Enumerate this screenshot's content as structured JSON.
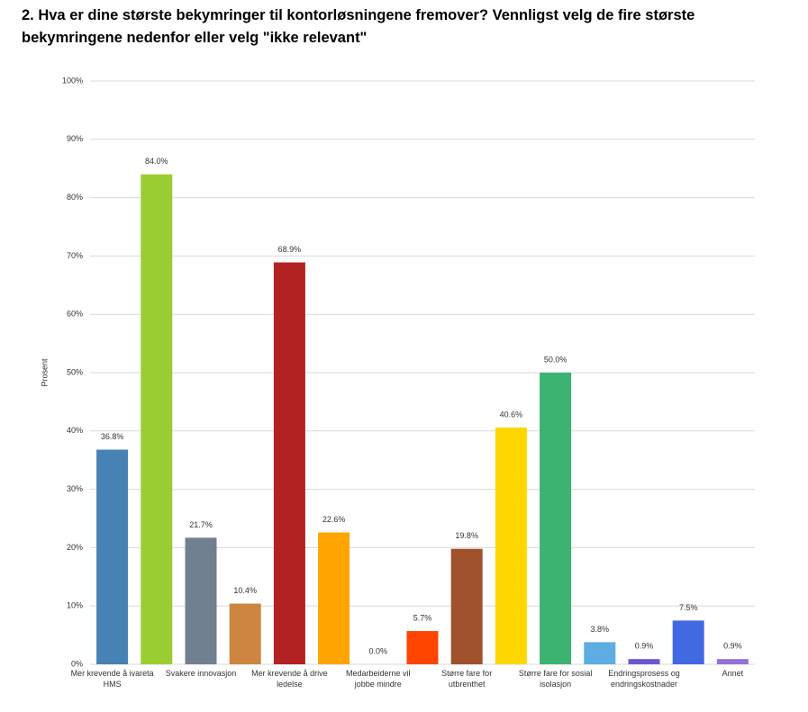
{
  "chart_data": {
    "type": "bar",
    "title": "2. Hva er dine største bekymringer til kontorløsningene fremover? Vennligst velg de fire største bekymringene nedenfor eller velg \"ikke relevant\"",
    "y_label": "Prosent",
    "categories": [
      "Mer krevende å ivareta HMS",
      null,
      "Svakere innovasjon",
      null,
      "Mer krevende å drive ledelse",
      null,
      "Medarbeiderne vil jobbe mindre",
      null,
      "Større fare for utbrenthet",
      null,
      "Større fare for sosial isolasjon",
      null,
      "Endringsprosess og endringskostnader",
      null,
      "Annet"
    ],
    "values": [
      36.8,
      84.0,
      21.7,
      10.4,
      68.9,
      22.6,
      0.0,
      5.7,
      19.8,
      40.6,
      50.0,
      3.8,
      0.9,
      7.5,
      0.9
    ],
    "value_labels": [
      "36.8%",
      "84.0%",
      "21.7%",
      "10.4%",
      "68.9%",
      "22.6%",
      "0.0%",
      "5.7%",
      "19.8%",
      "40.6%",
      "50.0%",
      "3.8%",
      "0.9%",
      "7.5%",
      "0.9%"
    ],
    "colors": [
      "#4682b4",
      "#9acd32",
      "#708090",
      "#cd853f",
      "#b22222",
      "#ffa500",
      "#2e8b57",
      "#ff4500",
      "#a0522d",
      "#ffd700",
      "#3cb371",
      "#5dade2",
      "#6a5acd",
      "#4169e1",
      "#9370db"
    ],
    "ylim": [
      0,
      100
    ],
    "yticks": [
      {
        "value": 0,
        "label": "0%"
      },
      {
        "value": 10,
        "label": "10%"
      },
      {
        "value": 20,
        "label": "20%"
      },
      {
        "value": 30,
        "label": "30%"
      },
      {
        "value": 40,
        "label": "40%"
      },
      {
        "value": 50,
        "label": "50%"
      },
      {
        "value": 60,
        "label": "60%"
      },
      {
        "value": 70,
        "label": "70%"
      },
      {
        "value": 80,
        "label": "80%"
      },
      {
        "value": 90,
        "label": "90%"
      },
      {
        "value": 100,
        "label": "100%"
      }
    ],
    "grid": true
  }
}
